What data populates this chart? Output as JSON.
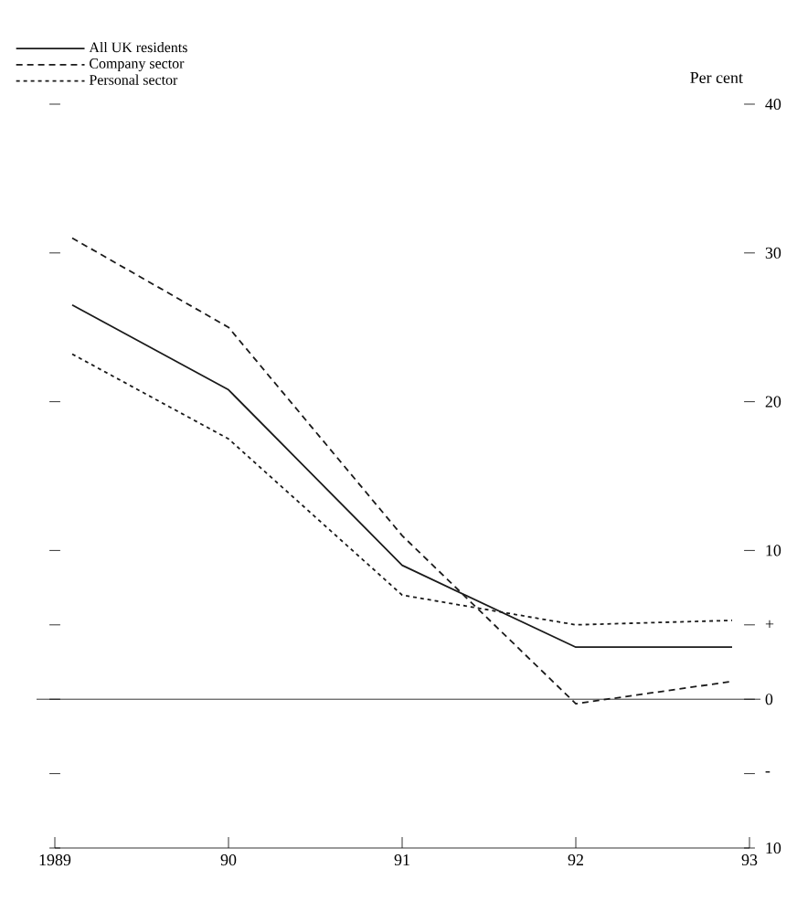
{
  "chart_data": {
    "type": "line",
    "ylabel": "Per cent",
    "x": [
      1989.1,
      1990,
      1991,
      1992,
      1992.9
    ],
    "series": [
      {
        "name": "All UK residents",
        "color": "#1a1a1a",
        "line_style": "solid",
        "values": [
          26.5,
          20.8,
          9,
          3.5,
          3.5
        ]
      },
      {
        "name": "Company sector",
        "color": "#1a1a1a",
        "line_style": "dashed",
        "values": [
          31,
          25,
          11,
          -0.3,
          1.2
        ]
      },
      {
        "name": "Personal sector",
        "color": "#1a1a1a",
        "line_style": "dashed",
        "values": [
          23.2,
          17.5,
          7,
          5,
          5.3
        ]
      }
    ],
    "xlim": [
      1989,
      1993
    ],
    "xticks": [
      {
        "value": 1989,
        "label": "1989"
      },
      {
        "value": 1990,
        "label": "90"
      },
      {
        "value": 1991,
        "label": "91"
      },
      {
        "value": 1992,
        "label": "92"
      },
      {
        "value": 1993,
        "label": "93"
      }
    ],
    "ylim": [
      -10,
      40
    ],
    "yticks": [
      {
        "value": -10,
        "label": "10"
      },
      {
        "value": -5,
        "label": "-"
      },
      0,
      {
        "value": 5,
        "label": "+"
      },
      10,
      20,
      30,
      40
    ],
    "ref_lines": [
      {
        "axis": "y",
        "value": 0,
        "label": null
      }
    ],
    "legend": "top left",
    "marker": "none",
    "grid": false
  }
}
